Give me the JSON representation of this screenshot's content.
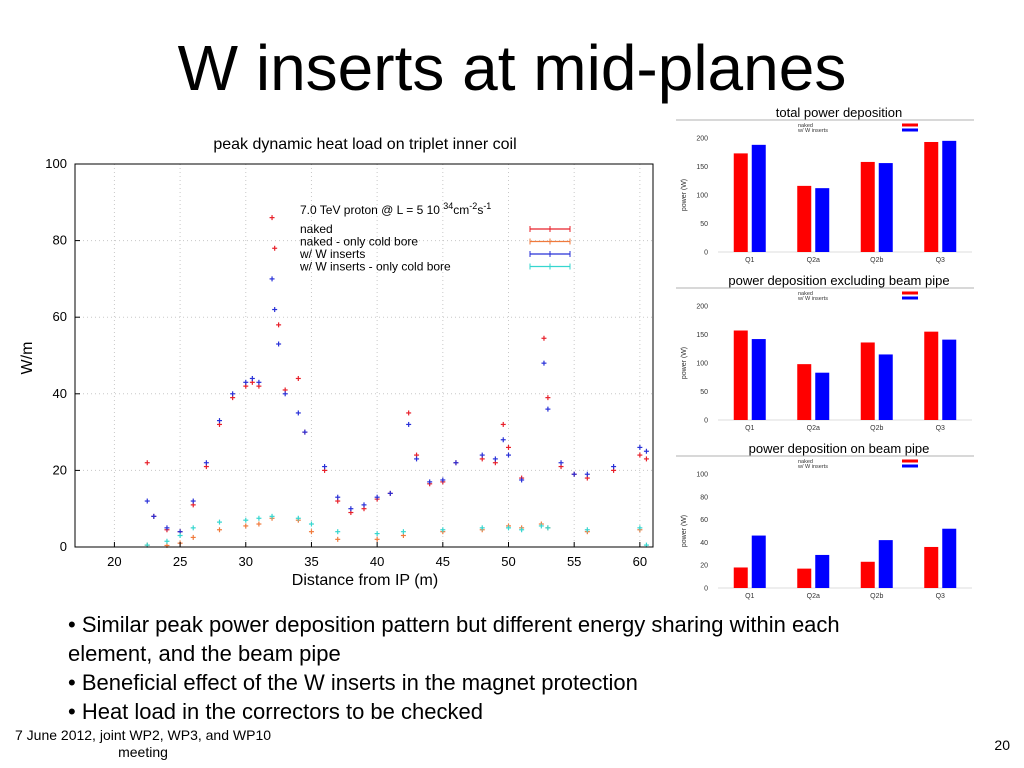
{
  "slide": {
    "title": "W inserts at mid-planes",
    "bullets": [
      "Similar peak power deposition pattern but different energy sharing within each",
      "element, and the beam pipe",
      "Beneficial effect of the W inserts in the magnet protection",
      "Heat load in the correctors to be checked"
    ],
    "bullet_marks": [
      true,
      false,
      true,
      true
    ],
    "footer_line1": "7 June 2012, joint WP2, WP3, and WP10",
    "footer_line2": "meeting",
    "page_number": "20"
  },
  "chart_data": [
    {
      "type": "scatter",
      "title": "peak dynamic heat load on triplet inner coil",
      "xlabel": "Distance from IP (m)",
      "ylabel": "W/m",
      "xlim": [
        17,
        61
      ],
      "ylim": [
        0,
        100
      ],
      "xticks": [
        20,
        25,
        30,
        35,
        40,
        45,
        50,
        55,
        60
      ],
      "yticks": [
        0,
        20,
        40,
        60,
        80,
        100
      ],
      "grid": true,
      "legend_title": "7.0 TeV proton @ L = 5 10 34cm-2s-1",
      "legend_title_parts": [
        "7.0 TeV proton @ L = 5 10",
        "34",
        "cm",
        "-2",
        "s",
        "-1"
      ],
      "legend_position": "top-right",
      "series": [
        {
          "name": "naked",
          "color": "#e8202a",
          "points": [
            [
              22.5,
              22
            ],
            [
              23,
              8
            ],
            [
              24,
              4.5
            ],
            [
              25,
              4
            ],
            [
              26,
              11
            ],
            [
              27,
              21
            ],
            [
              28,
              32
            ],
            [
              29,
              39
            ],
            [
              30,
              42
            ],
            [
              30.5,
              43
            ],
            [
              31,
              42
            ],
            [
              32,
              86
            ],
            [
              32.2,
              78
            ],
            [
              32.5,
              58
            ],
            [
              33,
              41
            ],
            [
              34,
              44
            ],
            [
              34.5,
              30
            ],
            [
              36,
              20
            ],
            [
              37,
              12
            ],
            [
              38,
              9
            ],
            [
              39,
              10
            ],
            [
              40,
              12.5
            ],
            [
              41,
              14
            ],
            [
              42.4,
              35
            ],
            [
              43,
              24
            ],
            [
              44,
              16.5
            ],
            [
              45,
              17
            ],
            [
              46,
              22
            ],
            [
              48,
              23
            ],
            [
              49,
              22
            ],
            [
              49.6,
              32
            ],
            [
              50,
              26
            ],
            [
              51,
              18
            ],
            [
              52.7,
              54.5
            ],
            [
              53,
              39
            ],
            [
              54,
              21
            ],
            [
              55,
              19
            ],
            [
              56,
              18
            ],
            [
              58,
              20
            ],
            [
              60,
              24
            ],
            [
              60.5,
              23
            ]
          ]
        },
        {
          "name": "naked - only cold bore",
          "color": "#f07a3c",
          "points": [
            [
              22.5,
              0.5
            ],
            [
              24,
              0.4
            ],
            [
              25,
              1
            ],
            [
              26,
              2.5
            ],
            [
              28,
              4.5
            ],
            [
              30,
              5.5
            ],
            [
              31,
              6
            ],
            [
              32,
              7.5
            ],
            [
              34,
              7
            ],
            [
              35,
              4
            ],
            [
              37,
              2
            ],
            [
              40,
              2
            ],
            [
              42,
              3
            ],
            [
              45,
              4
            ],
            [
              48,
              4.5
            ],
            [
              50,
              5.5
            ],
            [
              51,
              5
            ],
            [
              52.5,
              6
            ],
            [
              53,
              5
            ],
            [
              56,
              4
            ],
            [
              60,
              4.5
            ]
          ]
        },
        {
          "name": "w/ W inserts",
          "color": "#2830d8",
          "points": [
            [
              22.5,
              12
            ],
            [
              23,
              8
            ],
            [
              24,
              5
            ],
            [
              25,
              4
            ],
            [
              26,
              12
            ],
            [
              27,
              22
            ],
            [
              28,
              33
            ],
            [
              29,
              40
            ],
            [
              30,
              43
            ],
            [
              30.5,
              44
            ],
            [
              31,
              43
            ],
            [
              32,
              70
            ],
            [
              32.2,
              62
            ],
            [
              32.5,
              53
            ],
            [
              33,
              40
            ],
            [
              34,
              35
            ],
            [
              34.5,
              30
            ],
            [
              36,
              21
            ],
            [
              37,
              13
            ],
            [
              38,
              10
            ],
            [
              39,
              11
            ],
            [
              40,
              13
            ],
            [
              41,
              14
            ],
            [
              42.4,
              32
            ],
            [
              43,
              23
            ],
            [
              44,
              17
            ],
            [
              45,
              17.5
            ],
            [
              46,
              22
            ],
            [
              48,
              24
            ],
            [
              49,
              23
            ],
            [
              49.6,
              28
            ],
            [
              50,
              24
            ],
            [
              51,
              17.5
            ],
            [
              52.7,
              48
            ],
            [
              53,
              36
            ],
            [
              54,
              22
            ],
            [
              55,
              19
            ],
            [
              56,
              19
            ],
            [
              58,
              21
            ],
            [
              60,
              26
            ],
            [
              60.5,
              25
            ]
          ]
        },
        {
          "name": "w/ W inserts - only cold bore",
          "color": "#36d6cf",
          "points": [
            [
              22.5,
              0.5
            ],
            [
              24,
              1.5
            ],
            [
              25,
              3
            ],
            [
              26,
              5
            ],
            [
              28,
              6.5
            ],
            [
              30,
              7
            ],
            [
              31,
              7.5
            ],
            [
              32,
              8
            ],
            [
              34,
              7.5
            ],
            [
              35,
              6
            ],
            [
              37,
              4
            ],
            [
              40,
              3.5
            ],
            [
              42,
              4
            ],
            [
              45,
              4.5
            ],
            [
              48,
              5
            ],
            [
              50,
              5
            ],
            [
              51,
              4.5
            ],
            [
              52.5,
              5.5
            ],
            [
              53,
              5
            ],
            [
              56,
              4.5
            ],
            [
              60,
              5
            ],
            [
              60.5,
              0.5
            ]
          ]
        }
      ]
    },
    {
      "type": "bar",
      "title": "total power deposition",
      "ylabel": "power (W)",
      "categories": [
        "Q1",
        "Q2a",
        "Q2b",
        "Q3"
      ],
      "ylim": [
        0,
        200
      ],
      "yticks": [
        0,
        50,
        100,
        150,
        200
      ],
      "legend_position": "top-right",
      "series": [
        {
          "name": "naked",
          "color": "#ff0000",
          "values": [
            173,
            116,
            158,
            193
          ]
        },
        {
          "name": "w/ W inserts",
          "color": "#0000ff",
          "values": [
            188,
            112,
            156,
            195
          ]
        }
      ]
    },
    {
      "type": "bar",
      "title": "power deposition excluding beam pipe",
      "ylabel": "power (W)",
      "categories": [
        "Q1",
        "Q2a",
        "Q2b",
        "Q3"
      ],
      "ylim": [
        0,
        200
      ],
      "yticks": [
        0,
        50,
        100,
        150,
        200
      ],
      "legend_position": "top-right",
      "series": [
        {
          "name": "naked",
          "color": "#ff0000",
          "values": [
            157,
            98,
            136,
            155
          ]
        },
        {
          "name": "w/ W inserts",
          "color": "#0000ff",
          "values": [
            142,
            83,
            115,
            141
          ]
        }
      ]
    },
    {
      "type": "bar",
      "title": "power deposition on beam pipe",
      "ylabel": "power (W)",
      "categories": [
        "Q1",
        "Q2a",
        "Q2b",
        "Q3"
      ],
      "ylim": [
        0,
        100
      ],
      "yticks": [
        0,
        20,
        40,
        60,
        80,
        100
      ],
      "legend_position": "top-right",
      "series": [
        {
          "name": "naked",
          "color": "#ff0000",
          "values": [
            18,
            17,
            23,
            36
          ]
        },
        {
          "name": "w/ W inserts",
          "color": "#0000ff",
          "values": [
            46,
            29,
            42,
            52
          ]
        }
      ]
    }
  ]
}
